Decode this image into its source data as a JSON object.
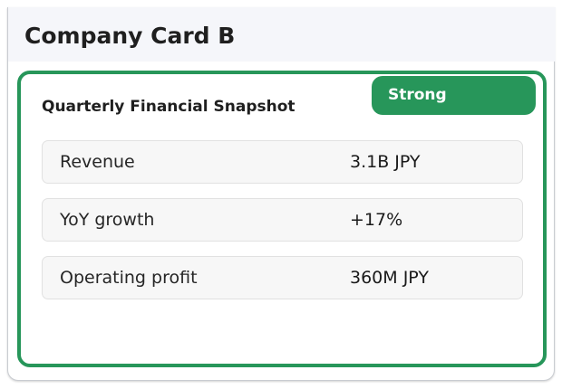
{
  "header": {
    "title": "Company Card B"
  },
  "card": {
    "title": "Quarterly Financial Snapshot",
    "badge": "Strong",
    "accent_color": "#27965a",
    "metrics": [
      {
        "label": "Revenue",
        "value": "3.1B JPY"
      },
      {
        "label": "YoY growth",
        "value": "+17%"
      },
      {
        "label": "Operating profit",
        "value": "360M JPY"
      }
    ]
  }
}
